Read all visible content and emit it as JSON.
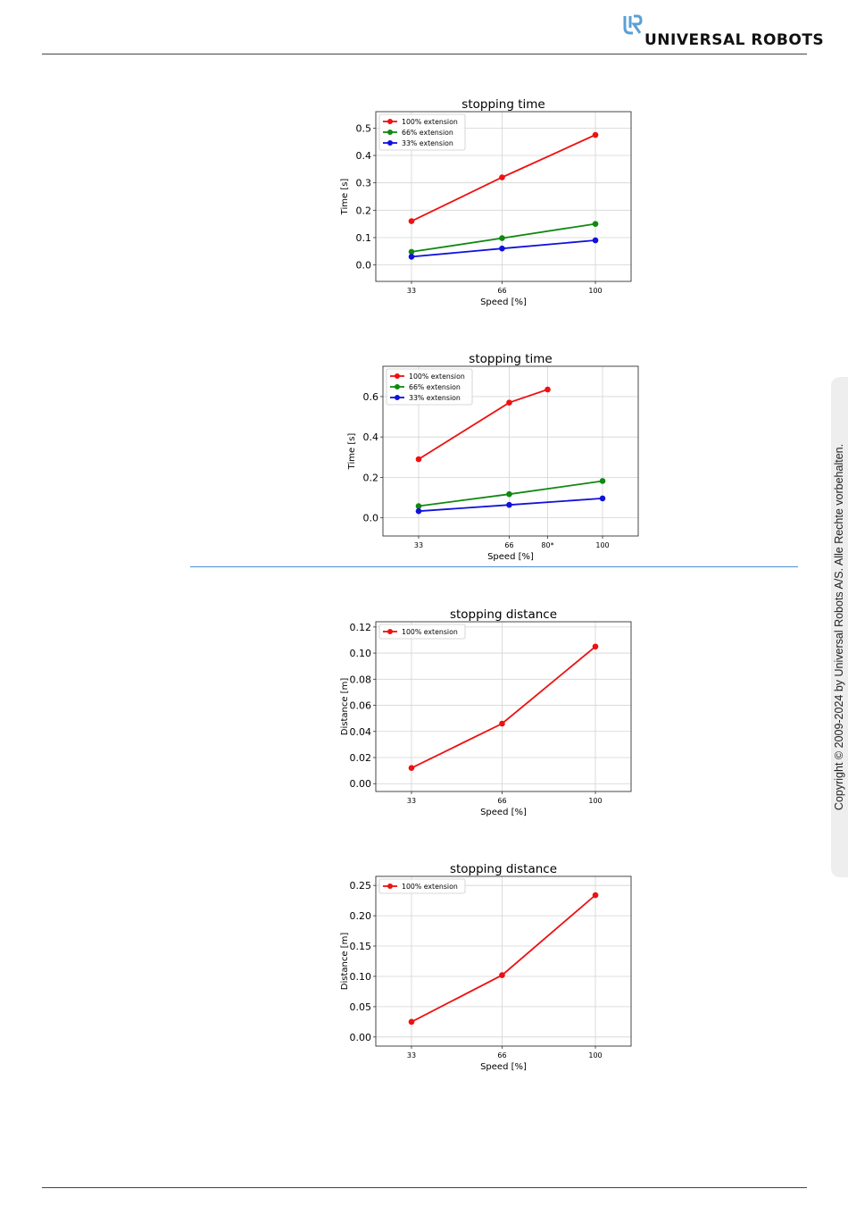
{
  "header": {
    "brand": "UNIVERSAL ROBOTS",
    "brand_color": "#5aa0d4"
  },
  "side_tab": {
    "copyright": "Copyright © 2009-2024 by Universal Robots A/S. Alle Rechte vorbehalten."
  },
  "colors": {
    "series_red": "#ee1111",
    "series_green": "#118811",
    "series_blue": "#1111dd",
    "section_rule": "#4a90d9"
  },
  "chart_data": [
    {
      "type": "line",
      "title": "stopping time",
      "xlabel": "Speed [%]",
      "ylabel": "Time [s]",
      "xticks": [
        "33",
        "66",
        "100"
      ],
      "xtick_values": [
        33,
        66,
        100
      ],
      "yticks": [
        "0.0",
        "0.1",
        "0.2",
        "0.3",
        "0.4",
        "0.5"
      ],
      "ytick_values": [
        0.0,
        0.1,
        0.2,
        0.3,
        0.4,
        0.5
      ],
      "xlim": [
        20,
        113
      ],
      "ylim": [
        -0.06,
        0.56
      ],
      "grid": true,
      "legend_position": "upper-left",
      "series": [
        {
          "name": "100% extension",
          "color": "#ee1111",
          "x": [
            33,
            66,
            100
          ],
          "y": [
            0.16,
            0.32,
            0.475
          ]
        },
        {
          "name": "66% extension",
          "color": "#118811",
          "x": [
            33,
            66,
            100
          ],
          "y": [
            0.048,
            0.098,
            0.15
          ]
        },
        {
          "name": "33% extension",
          "color": "#1111dd",
          "x": [
            33,
            66,
            100
          ],
          "y": [
            0.03,
            0.06,
            0.09
          ]
        }
      ]
    },
    {
      "type": "line",
      "title": "stopping time",
      "xlabel": "Speed [%]",
      "ylabel": "Time [s]",
      "xticks": [
        "33",
        "66",
        "80*",
        "100"
      ],
      "xtick_values": [
        33,
        66,
        80,
        100
      ],
      "yticks": [
        "0.0",
        "0.2",
        "0.4",
        "0.6"
      ],
      "ytick_values": [
        0.0,
        0.2,
        0.4,
        0.6
      ],
      "xlim": [
        20,
        113
      ],
      "ylim": [
        -0.09,
        0.75
      ],
      "grid": true,
      "legend_position": "upper-left",
      "series": [
        {
          "name": "100% extension",
          "color": "#ee1111",
          "x": [
            33,
            66,
            80
          ],
          "y": [
            0.29,
            0.57,
            0.635
          ]
        },
        {
          "name": "66% extension",
          "color": "#118811",
          "x": [
            33,
            66,
            100
          ],
          "y": [
            0.058,
            0.117,
            0.182
          ]
        },
        {
          "name": "33% extension",
          "color": "#1111dd",
          "x": [
            33,
            66,
            100
          ],
          "y": [
            0.033,
            0.064,
            0.096
          ]
        }
      ]
    },
    {
      "type": "line",
      "title": "stopping distance",
      "xlabel": "Speed [%]",
      "ylabel": "Distance [m]",
      "xticks": [
        "33",
        "66",
        "100"
      ],
      "xtick_values": [
        33,
        66,
        100
      ],
      "yticks": [
        "0.00",
        "0.02",
        "0.04",
        "0.06",
        "0.08",
        "0.10",
        "0.12"
      ],
      "ytick_values": [
        0.0,
        0.02,
        0.04,
        0.06,
        0.08,
        0.1,
        0.12
      ],
      "xlim": [
        20,
        113
      ],
      "ylim": [
        -0.006,
        0.124
      ],
      "grid": true,
      "legend_position": "upper-left",
      "series": [
        {
          "name": "100% extension",
          "color": "#ee1111",
          "x": [
            33,
            66,
            100
          ],
          "y": [
            0.012,
            0.046,
            0.105
          ]
        }
      ]
    },
    {
      "type": "line",
      "title": "stopping distance",
      "xlabel": "Speed [%]",
      "ylabel": "Distance [m]",
      "xticks": [
        "33",
        "66",
        "100"
      ],
      "xtick_values": [
        33,
        66,
        100
      ],
      "yticks": [
        "0.00",
        "0.05",
        "0.10",
        "0.15",
        "0.20",
        "0.25"
      ],
      "ytick_values": [
        0.0,
        0.05,
        0.1,
        0.15,
        0.2,
        0.25
      ],
      "xlim": [
        20,
        113
      ],
      "ylim": [
        -0.015,
        0.265
      ],
      "grid": true,
      "legend_position": "upper-left",
      "series": [
        {
          "name": "100% extension",
          "color": "#ee1111",
          "x": [
            33,
            66,
            100
          ],
          "y": [
            0.025,
            0.102,
            0.234
          ]
        }
      ]
    }
  ]
}
